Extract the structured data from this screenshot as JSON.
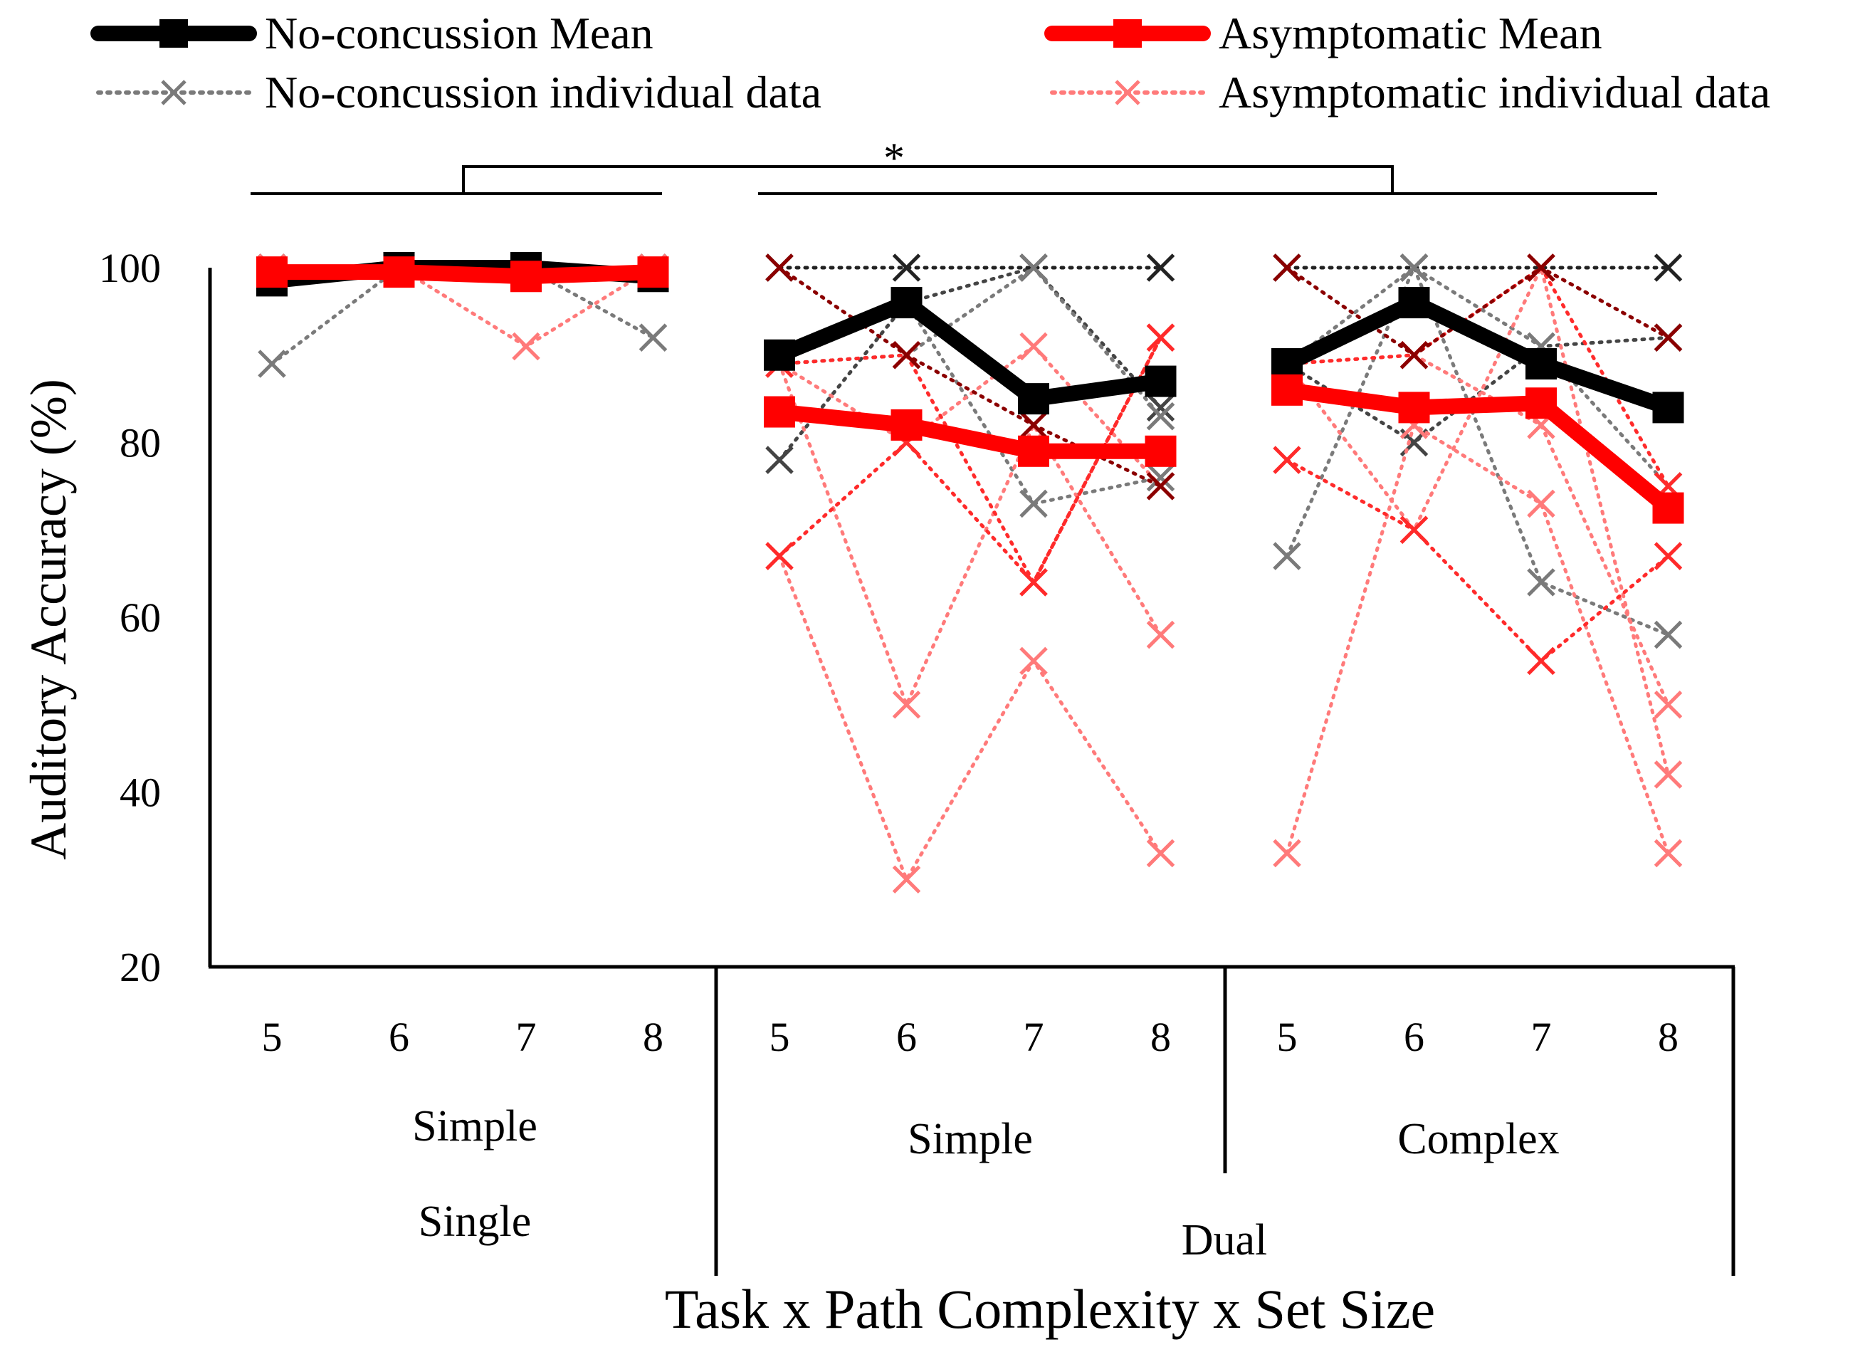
{
  "chart_data": {
    "type": "line",
    "ylabel": "Auditory Accuracy (%)",
    "xlabel": "Task x Path Complexity x Set Size",
    "ylim": [
      20,
      100
    ],
    "yticks": [
      20,
      40,
      60,
      80,
      100
    ],
    "set_sizes": [
      "5",
      "6",
      "7",
      "8",
      "5",
      "6",
      "7",
      "8",
      "5",
      "6",
      "7",
      "8"
    ],
    "complexity_labels": [
      "Simple",
      "Simple",
      "Complex"
    ],
    "task_labels": [
      "Single",
      "Dual"
    ],
    "significance": "*",
    "legend": {
      "noconc_mean": "No-concussion Mean",
      "asym_mean": "Asymptomatic Mean",
      "noconc_indiv": "No-concussion individual data",
      "asym_indiv": "Asymptomatic individual data"
    },
    "colors": {
      "noconc_mean": "#000000",
      "asym_mean": "#ff0000",
      "noconc_indiv": [
        "#7a7a7a",
        "#444444",
        "#222222"
      ],
      "asym_indiv": [
        "#ff7a7a",
        "#ff2a2a",
        "#8b0000"
      ]
    },
    "series_means": [
      {
        "name": "No-concussion Mean",
        "groups": [
          [
            98.5,
            100,
            100,
            99
          ],
          [
            90,
            96,
            85,
            87
          ],
          [
            89,
            96,
            89,
            84
          ]
        ]
      },
      {
        "name": "Asymptomatic Mean",
        "groups": [
          [
            99.5,
            99.5,
            99,
            99.5
          ],
          [
            83.5,
            82,
            79,
            79
          ],
          [
            86,
            84,
            84.5,
            72.5
          ]
        ]
      }
    ],
    "individuals_noconc": [
      {
        "shade": 0,
        "groups": [
          [
            89,
            100,
            100,
            92
          ],
          [
            90,
            96,
            73,
            76
          ],
          [
            67,
            100,
            64,
            58
          ]
        ]
      },
      {
        "shade": 1,
        "groups": [
          [
            100,
            100,
            100,
            100
          ],
          [
            78,
            96,
            100,
            84
          ],
          [
            89,
            80,
            91,
            92
          ]
        ]
      },
      {
        "shade": 2,
        "groups": [
          [
            100,
            100,
            100,
            100
          ],
          [
            100,
            100,
            100,
            100
          ],
          [
            100,
            100,
            100,
            100
          ]
        ]
      },
      {
        "shade": 0,
        "groups": [
          null,
          [
            89,
            90,
            100,
            83
          ],
          [
            89,
            100,
            91,
            75
          ]
        ]
      }
    ],
    "individuals_asym": [
      {
        "shade": 0,
        "groups": [
          [
            100,
            100,
            91,
            100
          ],
          [
            67,
            30,
            55,
            33
          ],
          [
            33,
            82,
            73,
            33
          ]
        ]
      },
      {
        "shade": 0,
        "groups": [
          null,
          [
            89,
            50,
            82,
            58
          ],
          [
            89,
            70,
            100,
            42
          ]
        ]
      },
      {
        "shade": 0,
        "groups": [
          null,
          [
            89,
            80,
            91,
            75
          ],
          [
            89,
            90,
            82,
            50
          ]
        ]
      },
      {
        "shade": 1,
        "groups": [
          null,
          [
            67,
            80,
            64,
            92
          ],
          [
            78,
            70,
            55,
            67
          ]
        ]
      },
      {
        "shade": 1,
        "groups": [
          null,
          [
            89,
            90,
            64,
            92
          ],
          [
            89,
            90,
            100,
            75
          ]
        ]
      },
      {
        "shade": 2,
        "groups": [
          null,
          [
            100,
            90,
            82,
            75
          ],
          [
            100,
            90,
            100,
            92
          ]
        ]
      }
    ]
  }
}
